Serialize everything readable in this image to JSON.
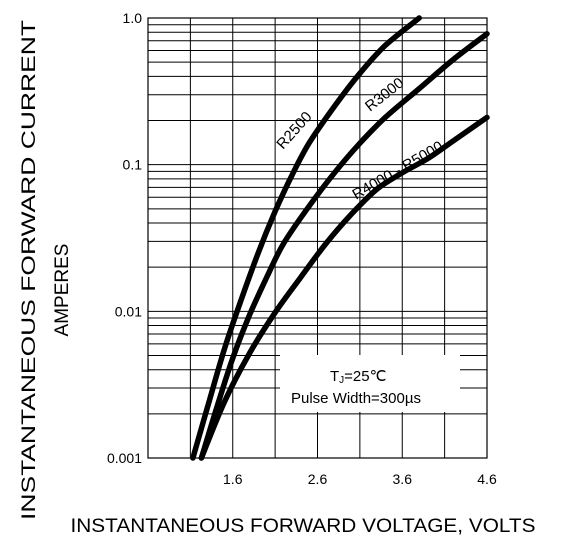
{
  "chart_data": {
    "type": "line",
    "xlabel": "INSTANTANEOUS FORWARD VOLTAGE, VOLTS",
    "ylabel_lines": [
      "INSTANTANEOUS FORWARD CURRENT",
      "AMPERES"
    ],
    "x_range": [
      0.6,
      4.6
    ],
    "y_range": [
      0.001,
      1.0
    ],
    "y_scale": "log",
    "grid": true,
    "x_ticks": [
      {
        "value": 1.6,
        "label": "1.6"
      },
      {
        "value": 2.6,
        "label": "2.6"
      },
      {
        "value": 3.6,
        "label": "3.6"
      },
      {
        "value": 4.6,
        "label": "4.6"
      }
    ],
    "y_ticks": [
      {
        "value": 1.0,
        "label": "1.0"
      },
      {
        "value": 0.1,
        "label": "0.1"
      },
      {
        "value": 0.01,
        "label": "0.01"
      },
      {
        "value": 0.001,
        "label": "0.001"
      }
    ],
    "series": [
      {
        "name": "R2500",
        "x": [
          1.13,
          1.3,
          1.5,
          1.7,
          1.9,
          2.1,
          2.3,
          2.5,
          2.8,
          3.1,
          3.4,
          3.8
        ],
        "y": [
          0.001,
          0.0022,
          0.0055,
          0.012,
          0.025,
          0.048,
          0.085,
          0.14,
          0.25,
          0.42,
          0.65,
          1.0
        ]
      },
      {
        "name": "R3000",
        "x": [
          1.23,
          1.4,
          1.6,
          1.8,
          2.0,
          2.2,
          2.5,
          2.8,
          3.1,
          3.4,
          3.8,
          4.2,
          4.6
        ],
        "y": [
          0.001,
          0.0021,
          0.0048,
          0.0095,
          0.017,
          0.029,
          0.052,
          0.088,
          0.14,
          0.21,
          0.33,
          0.52,
          0.78
        ]
      },
      {
        "name": "R4000 - R5000",
        "x": [
          1.23,
          1.5,
          1.8,
          2.1,
          2.4,
          2.7,
          3.0,
          3.3,
          3.6,
          3.9,
          4.2,
          4.6
        ],
        "y": [
          0.001,
          0.0024,
          0.0052,
          0.0098,
          0.017,
          0.029,
          0.046,
          0.068,
          0.088,
          0.11,
          0.145,
          0.21
        ]
      }
    ],
    "annotation": {
      "tj_main": "T",
      "tj_sub": "J",
      "tj_rest": "=25℃",
      "pulse": "Pulse Width=300µs"
    }
  }
}
